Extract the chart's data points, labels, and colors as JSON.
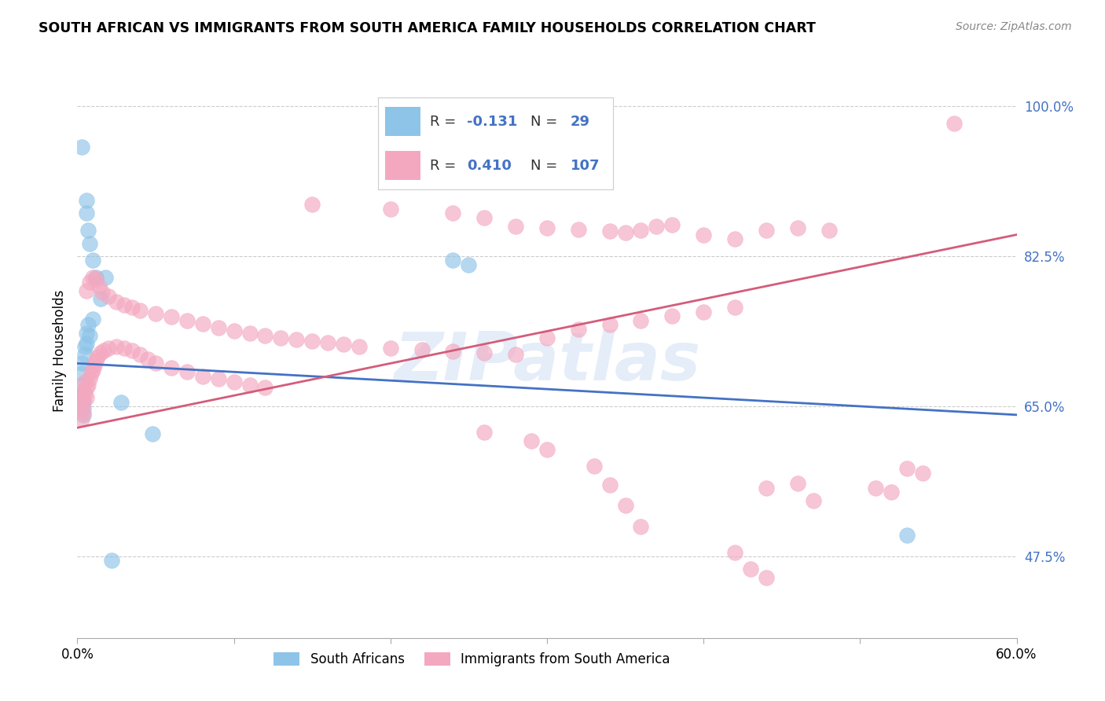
{
  "title": "SOUTH AFRICAN VS IMMIGRANTS FROM SOUTH AMERICA FAMILY HOUSEHOLDS CORRELATION CHART",
  "source": "Source: ZipAtlas.com",
  "ylabel": "Family Households",
  "ytick_labels": [
    "47.5%",
    "65.0%",
    "82.5%",
    "100.0%"
  ],
  "ytick_values": [
    0.475,
    0.65,
    0.825,
    1.0
  ],
  "xmin": 0.0,
  "xmax": 0.6,
  "ymin": 0.38,
  "ymax": 1.05,
  "watermark": "ZIPatlas",
  "color_blue": "#8ec4e8",
  "color_pink": "#f4a8c0",
  "line_color_blue": "#4472c4",
  "line_color_pink": "#d45c7a",
  "blue_scatter": [
    [
      0.003,
      0.952
    ],
    [
      0.006,
      0.89
    ],
    [
      0.006,
      0.875
    ],
    [
      0.007,
      0.855
    ],
    [
      0.008,
      0.84
    ],
    [
      0.01,
      0.82
    ],
    [
      0.012,
      0.8
    ],
    [
      0.015,
      0.775
    ],
    [
      0.018,
      0.8
    ],
    [
      0.003,
      0.7
    ],
    [
      0.003,
      0.688
    ],
    [
      0.003,
      0.675
    ],
    [
      0.003,
      0.663
    ],
    [
      0.004,
      0.656
    ],
    [
      0.004,
      0.648
    ],
    [
      0.004,
      0.64
    ],
    [
      0.005,
      0.72
    ],
    [
      0.005,
      0.71
    ],
    [
      0.006,
      0.735
    ],
    [
      0.006,
      0.723
    ],
    [
      0.007,
      0.745
    ],
    [
      0.008,
      0.732
    ],
    [
      0.01,
      0.752
    ],
    [
      0.022,
      0.47
    ],
    [
      0.028,
      0.655
    ],
    [
      0.048,
      0.618
    ],
    [
      0.24,
      0.82
    ],
    [
      0.25,
      0.815
    ],
    [
      0.53,
      0.5
    ]
  ],
  "pink_scatter": [
    [
      0.56,
      0.98
    ],
    [
      0.003,
      0.66
    ],
    [
      0.003,
      0.647
    ],
    [
      0.003,
      0.635
    ],
    [
      0.004,
      0.668
    ],
    [
      0.004,
      0.655
    ],
    [
      0.004,
      0.643
    ],
    [
      0.005,
      0.678
    ],
    [
      0.005,
      0.665
    ],
    [
      0.006,
      0.672
    ],
    [
      0.006,
      0.66
    ],
    [
      0.007,
      0.675
    ],
    [
      0.008,
      0.682
    ],
    [
      0.009,
      0.688
    ],
    [
      0.01,
      0.692
    ],
    [
      0.011,
      0.698
    ],
    [
      0.012,
      0.703
    ],
    [
      0.013,
      0.708
    ],
    [
      0.015,
      0.712
    ],
    [
      0.017,
      0.715
    ],
    [
      0.02,
      0.718
    ],
    [
      0.025,
      0.72
    ],
    [
      0.03,
      0.718
    ],
    [
      0.035,
      0.715
    ],
    [
      0.04,
      0.71
    ],
    [
      0.045,
      0.705
    ],
    [
      0.05,
      0.7
    ],
    [
      0.06,
      0.695
    ],
    [
      0.07,
      0.69
    ],
    [
      0.08,
      0.685
    ],
    [
      0.09,
      0.682
    ],
    [
      0.1,
      0.678
    ],
    [
      0.11,
      0.675
    ],
    [
      0.12,
      0.672
    ],
    [
      0.006,
      0.785
    ],
    [
      0.008,
      0.795
    ],
    [
      0.01,
      0.8
    ],
    [
      0.012,
      0.798
    ],
    [
      0.014,
      0.79
    ],
    [
      0.016,
      0.783
    ],
    [
      0.02,
      0.778
    ],
    [
      0.025,
      0.772
    ],
    [
      0.03,
      0.768
    ],
    [
      0.035,
      0.765
    ],
    [
      0.04,
      0.762
    ],
    [
      0.05,
      0.758
    ],
    [
      0.06,
      0.754
    ],
    [
      0.07,
      0.75
    ],
    [
      0.08,
      0.746
    ],
    [
      0.09,
      0.742
    ],
    [
      0.1,
      0.738
    ],
    [
      0.11,
      0.735
    ],
    [
      0.12,
      0.732
    ],
    [
      0.13,
      0.73
    ],
    [
      0.14,
      0.728
    ],
    [
      0.15,
      0.726
    ],
    [
      0.16,
      0.724
    ],
    [
      0.17,
      0.722
    ],
    [
      0.18,
      0.72
    ],
    [
      0.2,
      0.718
    ],
    [
      0.22,
      0.716
    ],
    [
      0.24,
      0.714
    ],
    [
      0.26,
      0.712
    ],
    [
      0.28,
      0.71
    ],
    [
      0.3,
      0.73
    ],
    [
      0.32,
      0.74
    ],
    [
      0.34,
      0.745
    ],
    [
      0.36,
      0.75
    ],
    [
      0.38,
      0.755
    ],
    [
      0.4,
      0.76
    ],
    [
      0.42,
      0.765
    ],
    [
      0.15,
      0.885
    ],
    [
      0.2,
      0.88
    ],
    [
      0.24,
      0.875
    ],
    [
      0.26,
      0.87
    ],
    [
      0.28,
      0.86
    ],
    [
      0.3,
      0.858
    ],
    [
      0.32,
      0.856
    ],
    [
      0.34,
      0.854
    ],
    [
      0.35,
      0.852
    ],
    [
      0.36,
      0.855
    ],
    [
      0.37,
      0.86
    ],
    [
      0.38,
      0.862
    ],
    [
      0.4,
      0.85
    ],
    [
      0.42,
      0.845
    ],
    [
      0.44,
      0.855
    ],
    [
      0.46,
      0.858
    ],
    [
      0.48,
      0.855
    ],
    [
      0.26,
      0.62
    ],
    [
      0.29,
      0.61
    ],
    [
      0.3,
      0.6
    ],
    [
      0.33,
      0.58
    ],
    [
      0.34,
      0.558
    ],
    [
      0.35,
      0.535
    ],
    [
      0.36,
      0.51
    ],
    [
      0.44,
      0.555
    ],
    [
      0.46,
      0.56
    ],
    [
      0.47,
      0.54
    ],
    [
      0.42,
      0.48
    ],
    [
      0.43,
      0.46
    ],
    [
      0.44,
      0.45
    ],
    [
      0.51,
      0.555
    ],
    [
      0.52,
      0.55
    ],
    [
      0.53,
      0.578
    ],
    [
      0.54,
      0.572
    ]
  ],
  "blue_line_x": [
    0.0,
    0.6
  ],
  "blue_line_y": [
    0.7,
    0.64
  ],
  "pink_line_x": [
    0.0,
    0.6
  ],
  "pink_line_y": [
    0.625,
    0.85
  ]
}
